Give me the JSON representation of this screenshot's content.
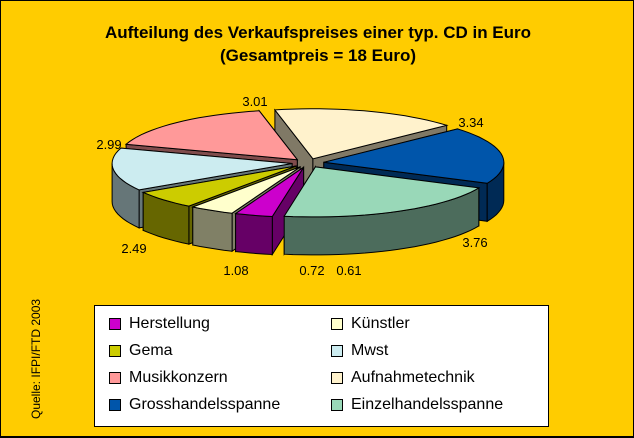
{
  "title_line1": "Aufteilung des Verkaufspreises einer typ. CD in Euro",
  "title_line2": "(Gesamtpreis = 18 Euro)",
  "source": "Quelle: IFPI/FTD 2003",
  "chart_data": {
    "type": "pie",
    "title": "Aufteilung des Verkaufspreises einer typ. CD in Euro (Gesamtpreis = 18 Euro)",
    "total": 18,
    "exploded": true,
    "legend_position": "bottom",
    "series": [
      {
        "name": "Herstellung",
        "value": 0.61,
        "label": "0.61",
        "color": "#CC00CC",
        "side": "#660066"
      },
      {
        "name": "Künstler",
        "value": 0.72,
        "label": "0.72",
        "color": "#FFFFCC",
        "side": "#808066"
      },
      {
        "name": "Gema",
        "value": 1.08,
        "label": "1.08",
        "color": "#CCCC00",
        "side": "#666600"
      },
      {
        "name": "Mwst",
        "value": 2.49,
        "label": "2.49",
        "color": "#CCECF0",
        "side": "#667678"
      },
      {
        "name": "Musikkonzern",
        "value": 2.99,
        "label": "2.99",
        "color": "#FF9999",
        "side": "#804C4C"
      },
      {
        "name": "Aufnahmetechnik",
        "value": 3.01,
        "label": "3.01",
        "color": "#FFF2CC",
        "side": "#807966"
      },
      {
        "name": "Grosshandelsspanne",
        "value": 3.34,
        "label": "3.34",
        "color": "#0055AA",
        "side": "#002A55"
      },
      {
        "name": "Einzelhandelsspanne",
        "value": 3.76,
        "label": "3.76",
        "color": "#99D8B8",
        "side": "#4C6C5C"
      }
    ]
  }
}
